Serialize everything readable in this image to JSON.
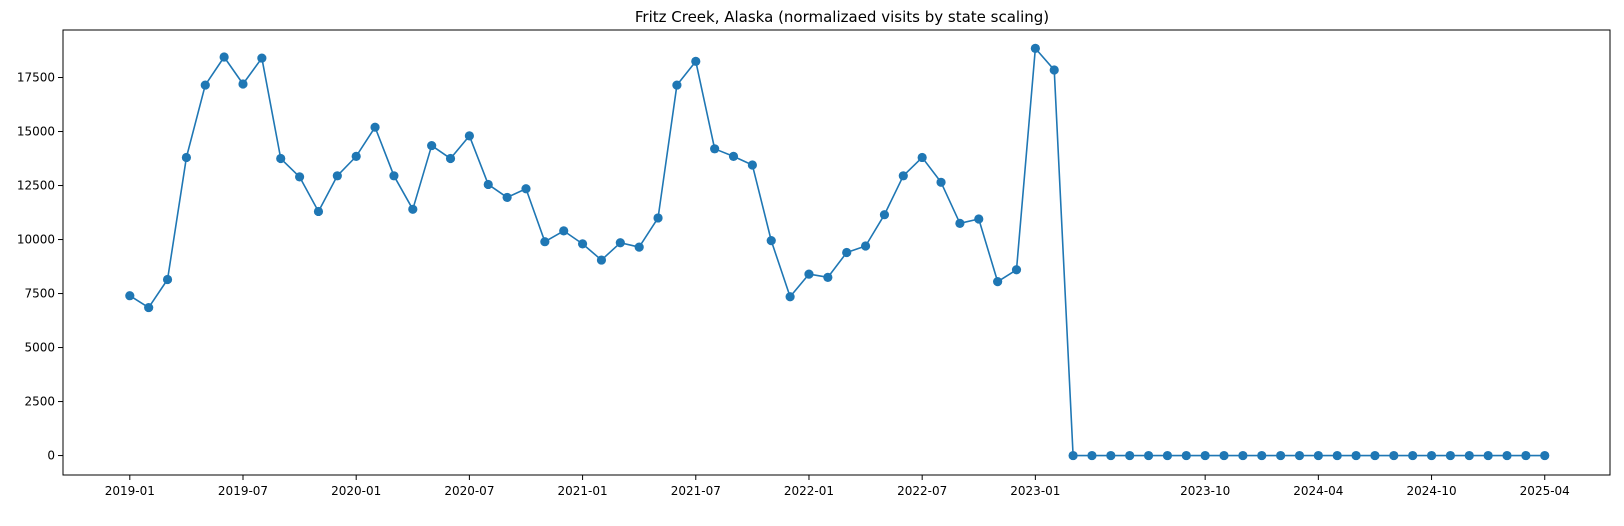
{
  "chart_data": {
    "type": "line",
    "title": "Fritz Creek, Alaska (normalizaed visits by state scaling)",
    "xlabel": "",
    "ylabel": "",
    "grid": false,
    "legend": "none",
    "color": "#1f77b4",
    "markers": true,
    "x_ticks": [
      "2019-01",
      "2019-07",
      "2020-01",
      "2020-07",
      "2021-01",
      "2021-07",
      "2022-01",
      "2022-07",
      "2023-01",
      "2023-10",
      "2024-04",
      "2024-10",
      "2025-04"
    ],
    "y_ticks": [
      0,
      2500,
      5000,
      7500,
      10000,
      12500,
      15000,
      17500
    ],
    "ylim": [
      -900,
      19700
    ],
    "xlim": [
      "2018-09-15",
      "2025-07-15"
    ],
    "series": [
      {
        "x": [
          "2019-01",
          "2019-02",
          "2019-03",
          "2019-04",
          "2019-05",
          "2019-06",
          "2019-07",
          "2019-08",
          "2019-09",
          "2019-10",
          "2019-11",
          "2019-12",
          "2020-01",
          "2020-02",
          "2020-03",
          "2020-04",
          "2020-05",
          "2020-06",
          "2020-07",
          "2020-08",
          "2020-09",
          "2020-10",
          "2020-11",
          "2020-12",
          "2021-01",
          "2021-02",
          "2021-03",
          "2021-04",
          "2021-05",
          "2021-06",
          "2021-07",
          "2021-08",
          "2021-09",
          "2021-10",
          "2021-11",
          "2021-12",
          "2022-01",
          "2022-02",
          "2022-03",
          "2022-04",
          "2022-05",
          "2022-06",
          "2022-07",
          "2022-08",
          "2022-09",
          "2022-10",
          "2022-11",
          "2022-12",
          "2023-01",
          "2023-02",
          "2023-03",
          "2023-04",
          "2023-05",
          "2023-06",
          "2023-07",
          "2023-08",
          "2023-09",
          "2023-10",
          "2023-11",
          "2023-12",
          "2024-01",
          "2024-02",
          "2024-03",
          "2024-04",
          "2024-05",
          "2024-06",
          "2024-07",
          "2024-08",
          "2024-09",
          "2024-10",
          "2024-11",
          "2024-12",
          "2025-01",
          "2025-02",
          "2025-03",
          "2025-04"
        ],
        "values": [
          7400,
          6850,
          8150,
          13800,
          17150,
          18450,
          17200,
          18400,
          13750,
          12900,
          11300,
          12950,
          13850,
          15200,
          12950,
          11400,
          14350,
          13750,
          14800,
          12550,
          11950,
          12350,
          9900,
          10400,
          9800,
          9050,
          9850,
          9650,
          11000,
          17150,
          18250,
          14200,
          13850,
          13450,
          9950,
          7350,
          8400,
          8250,
          9400,
          9700,
          11150,
          12950,
          13800,
          12650,
          10750,
          10950,
          8050,
          8600,
          18850,
          17850,
          0,
          0,
          0,
          0,
          0,
          0,
          0,
          0,
          0,
          0,
          0,
          0,
          0,
          0,
          0,
          0,
          0,
          0,
          0,
          0,
          0,
          0,
          0,
          0,
          0,
          0
        ]
      }
    ]
  }
}
